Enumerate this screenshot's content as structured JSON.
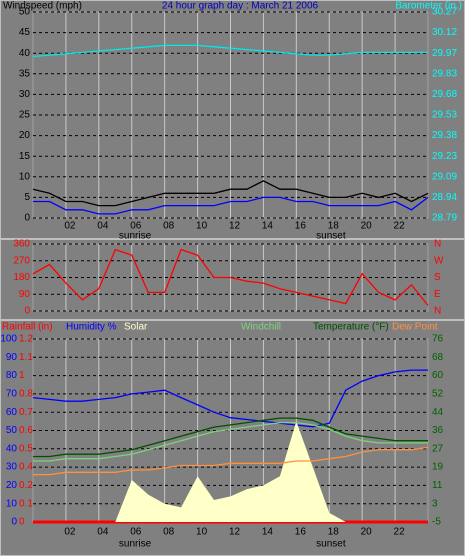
{
  "chart_data": [
    {
      "type": "line",
      "title": "24 hour graph day : March 21 2006",
      "ylabel": "Windspeed (mph)",
      "y2label": "Barometer (in.)",
      "ycolor": "#000000",
      "y2color": "#00ffff",
      "titlecolor": "#0000c0",
      "x": [
        0,
        1,
        2,
        3,
        4,
        5,
        6,
        7,
        8,
        9,
        10,
        11,
        12,
        13,
        14,
        15,
        16,
        17,
        18,
        19,
        20,
        21,
        22,
        23,
        24
      ],
      "xlim": [
        0,
        24
      ],
      "xticks": [
        {
          "value": 2,
          "label": "02"
        },
        {
          "value": 4,
          "label": "04"
        },
        {
          "value": 6,
          "label": "06"
        },
        {
          "value": 8,
          "label": "08"
        },
        10,
        12,
        14,
        16,
        18,
        20,
        22
      ],
      "ylim": [
        0,
        50
      ],
      "yticks": [
        0,
        5,
        10,
        15,
        20,
        25,
        30,
        35,
        40,
        45,
        50
      ],
      "y2lim": [
        28.79,
        30.27
      ],
      "y2ticks": [
        28.79,
        {
          "value": 28.938,
          "label": "28.94"
        },
        {
          "value": 29.086,
          "label": "29.09"
        },
        {
          "value": 29.234,
          "label": "29.23"
        },
        {
          "value": 29.382,
          "label": "29.38"
        },
        29.53,
        {
          "value": 29.678,
          "label": "29.68"
        },
        {
          "value": 29.826,
          "label": "29.83"
        },
        {
          "value": 29.974,
          "label": "29.97"
        },
        {
          "value": 30.122,
          "label": "30.12"
        },
        30.27
      ],
      "annotations": [
        {
          "text": "sunrise",
          "x": 6.2
        },
        {
          "text": "sunset",
          "x": 18.1
        }
      ],
      "series": [
        {
          "color": "#000000",
          "axis": "y",
          "values": [
            7,
            6,
            4,
            4,
            3,
            3,
            4,
            5,
            6,
            6,
            6,
            6,
            7,
            7,
            9,
            7,
            7,
            6,
            5,
            5,
            6,
            5,
            6,
            4,
            6
          ]
        },
        {
          "color": "#0000ff",
          "axis": "y",
          "values": [
            4,
            4,
            2,
            2,
            1,
            1,
            2,
            2,
            3,
            3,
            3,
            3,
            4,
            4,
            5,
            5,
            4,
            4,
            3,
            3,
            3,
            3,
            4,
            2,
            5
          ]
        },
        {
          "color": "#00e8e8",
          "axis": "y2",
          "values": [
            29.95,
            29.96,
            29.97,
            29.98,
            29.99,
            30.0,
            30.01,
            30.02,
            30.03,
            30.03,
            30.03,
            30.02,
            30.01,
            30.0,
            29.99,
            29.98,
            29.97,
            29.96,
            29.96,
            29.97,
            29.98,
            29.98,
            29.98,
            29.98,
            29.98
          ]
        }
      ]
    },
    {
      "type": "line",
      "ycolor": "#ff0000",
      "y2color": "#ff0000",
      "x": [
        0,
        1,
        2,
        3,
        4,
        5,
        6,
        7,
        8,
        9,
        10,
        11,
        12,
        13,
        14,
        15,
        16,
        17,
        18,
        19,
        20,
        21,
        22,
        23,
        24
      ],
      "xlim": [
        0,
        24
      ],
      "xticks": [
        2,
        4,
        6,
        8,
        10,
        12,
        14,
        16,
        18,
        20,
        22
      ],
      "show_xlabels": false,
      "ylim": [
        0,
        360
      ],
      "yticks": [
        0,
        90,
        180,
        270,
        360
      ],
      "y2lim": [
        0,
        360
      ],
      "y2ticks": [
        {
          "value": 0,
          "label": "N"
        },
        {
          "value": 90,
          "label": "E"
        },
        {
          "value": 180,
          "label": "S"
        },
        {
          "value": 270,
          "label": "W"
        },
        {
          "value": 360,
          "label": "N"
        }
      ],
      "series": [
        {
          "color": "#ff0000",
          "axis": "y",
          "values": [
            200,
            250,
            150,
            60,
            120,
            330,
            300,
            100,
            100,
            330,
            300,
            180,
            180,
            160,
            150,
            120,
            100,
            80,
            60,
            40,
            200,
            100,
            60,
            140,
            30
          ]
        }
      ]
    },
    {
      "type": "line",
      "ycolor": "#0000ff",
      "y2color": "#006000",
      "y3color": "#ff0000",
      "x": [
        0,
        1,
        2,
        3,
        4,
        5,
        6,
        7,
        8,
        9,
        10,
        11,
        12,
        13,
        14,
        15,
        16,
        17,
        18,
        19,
        20,
        21,
        22,
        23,
        24
      ],
      "xlim": [
        0,
        24
      ],
      "xticks": [
        {
          "value": 2,
          "label": "02"
        },
        {
          "value": 4,
          "label": "04"
        },
        {
          "value": 6,
          "label": "06"
        },
        {
          "value": 8,
          "label": "08"
        },
        10,
        12,
        14,
        16,
        18,
        20,
        22
      ],
      "ylim": [
        0,
        100
      ],
      "yticks": [
        0,
        10,
        20,
        30,
        40,
        50,
        60,
        70,
        80,
        90,
        100
      ],
      "y3lim": [
        0,
        1.2
      ],
      "y3ticks": [
        0,
        {
          "value": 0.12,
          "label": "0.1"
        },
        {
          "value": 0.24,
          "label": "0.2"
        },
        {
          "value": 0.36,
          "label": "0.4"
        },
        {
          "value": 0.48,
          "label": "0.5"
        },
        0.6,
        {
          "value": 0.72,
          "label": "0.7"
        },
        {
          "value": 0.84,
          "label": "0.8"
        },
        {
          "value": 0.96,
          "label": "1"
        },
        {
          "value": 1.08,
          "label": "1.1"
        },
        1.2
      ],
      "y2lim": [
        -5,
        76
      ],
      "y2ticks": [
        -5,
        {
          "value": 3.1,
          "label": "3"
        },
        {
          "value": 11.2,
          "label": "11"
        },
        {
          "value": 19.3,
          "label": "19"
        },
        {
          "value": 27.4,
          "label": "27"
        },
        {
          "value": 35.5,
          "label": "36"
        },
        {
          "value": 43.6,
          "label": "44"
        },
        {
          "value": 51.7,
          "label": "52"
        },
        {
          "value": 59.8,
          "label": "60"
        },
        {
          "value": 67.9,
          "label": "68"
        },
        76
      ],
      "annotations": [
        {
          "text": "sunrise",
          "x": 6.2
        },
        {
          "text": "sunset",
          "x": 18.1
        }
      ],
      "series": [
        {
          "name": "Rainfall (in)",
          "color": "#ff0000",
          "axis": "y3",
          "values": [
            0,
            0,
            0,
            0,
            0,
            0,
            0,
            0,
            0,
            0,
            0,
            0,
            0,
            0,
            0,
            0,
            0,
            0,
            0,
            0,
            0,
            0,
            0,
            0,
            0
          ]
        },
        {
          "name": "Humidity %",
          "color": "#0000ff",
          "axis": "y",
          "values": [
            68,
            67,
            66,
            66,
            67,
            68,
            70,
            71,
            72,
            68,
            64,
            60,
            57,
            56,
            55,
            54,
            53,
            52,
            54,
            72,
            77,
            80,
            82,
            83,
            83
          ]
        },
        {
          "name": "Solar",
          "color": "#ffffc8",
          "axis": "y",
          "area": true,
          "values": [
            0,
            0,
            0,
            0,
            0,
            0,
            23,
            15,
            10,
            8,
            25,
            12,
            14,
            18,
            20,
            25,
            55,
            30,
            5,
            0,
            0,
            0,
            0,
            0,
            0
          ]
        },
        {
          "name": "Windchill",
          "color": "#80d080",
          "axis": "y2",
          "values": [
            22,
            22,
            23,
            23,
            23,
            24,
            25,
            27,
            29,
            31,
            33,
            35,
            36,
            37,
            38,
            39,
            39,
            38,
            36,
            33,
            31,
            30,
            30,
            30,
            30
          ]
        },
        {
          "name": "Temperature (°F)",
          "color": "#005000",
          "axis": "y2",
          "values": [
            24,
            24,
            25,
            25,
            25,
            26,
            27,
            29,
            31,
            33,
            35,
            37,
            38,
            39,
            40,
            41,
            41,
            40,
            37,
            34,
            33,
            32,
            31,
            31,
            31
          ]
        },
        {
          "name": "Dew Point",
          "color": "#ff9040",
          "axis": "y2",
          "values": [
            16,
            16,
            17,
            17,
            17,
            17,
            18,
            18,
            19,
            20,
            20,
            20,
            21,
            21,
            21,
            21,
            22,
            22,
            23,
            24,
            26,
            27,
            27,
            27,
            28
          ]
        }
      ]
    }
  ]
}
